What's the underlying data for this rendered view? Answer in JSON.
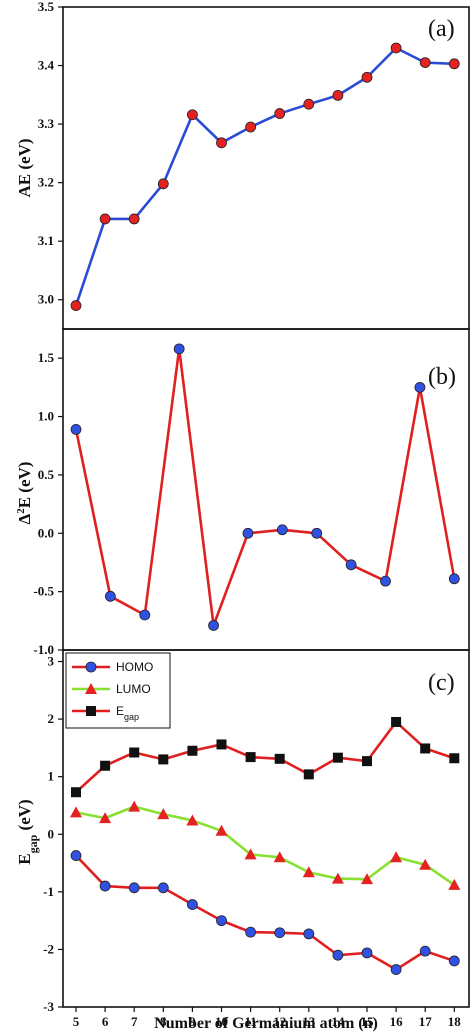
{
  "chart_data": [
    {
      "type": "line",
      "panel_label": "(a)",
      "ylabel": "AE (eV)",
      "ylim": [
        2.95,
        3.5
      ],
      "yticks": [
        "3.0",
        "3.1",
        "3.2",
        "3.3",
        "3.4",
        "3.5"
      ],
      "x": [
        5,
        6,
        7,
        8,
        9,
        10,
        11,
        12,
        13,
        14,
        15,
        16,
        17,
        18
      ],
      "series": [
        {
          "values": [
            2.99,
            3.138,
            3.138,
            3.198,
            3.316,
            3.268,
            3.295,
            3.318,
            3.334,
            3.349,
            3.38,
            3.43,
            3.405,
            3.403
          ],
          "line_color": "#2b4bd6",
          "marker": "circle-red"
        }
      ]
    },
    {
      "type": "line",
      "panel_label": "(b)",
      "ylabel": "Δ2E (eV)",
      "ylim": [
        -1.0,
        1.75
      ],
      "yticks": [
        "-1.0",
        "-0.5",
        "0.0",
        "0.5",
        "1.0",
        "1.5"
      ],
      "x": [
        5,
        6,
        7,
        8,
        9,
        10,
        11,
        12,
        13,
        14,
        15,
        16,
        17,
        18
      ],
      "series": [
        {
          "values": [
            0.89,
            -0.54,
            -0.7,
            1.58,
            -0.79,
            0.0,
            0.03,
            0.0,
            -0.27,
            -0.41,
            1.25,
            -0.39
          ],
          "x": [
            5,
            6,
            7,
            8,
            9,
            10,
            11,
            12,
            13,
            14,
            15,
            16
          ],
          "line_color": "#e02020",
          "marker": "circle-blue"
        }
      ]
    },
    {
      "type": "line",
      "panel_label": "(c)",
      "ylabel": "Egap (eV)",
      "xlabel": "Number of Germanium atom (n)",
      "ylim": [
        -3,
        3.2
      ],
      "yticks": [
        "-3",
        "-2",
        "-1",
        "0",
        "1",
        "2",
        "3"
      ],
      "categories": [
        "5",
        "6",
        "7",
        "8",
        "9",
        "10",
        "11",
        "12",
        "13",
        "14",
        "15",
        "16",
        "17",
        "18"
      ],
      "x": [
        5,
        6,
        7,
        8,
        9,
        10,
        11,
        12,
        13,
        14,
        15,
        16,
        17,
        18
      ],
      "legend": "top-left",
      "series": [
        {
          "name": "HOMO",
          "values": [
            -0.37,
            -0.9,
            -0.93,
            -0.93,
            -1.22,
            -1.5,
            -1.7,
            -1.71,
            -1.73,
            -2.1,
            -2.06,
            -2.35,
            -2.03,
            -2.2
          ],
          "line_color": "#e02020",
          "marker": "circle-blue"
        },
        {
          "name": "LUMO",
          "values": [
            0.38,
            0.28,
            0.48,
            0.35,
            0.24,
            0.06,
            -0.35,
            -0.4,
            -0.66,
            -0.77,
            -0.78,
            -0.4,
            -0.53,
            -0.88
          ],
          "line_color": "#88e030",
          "marker": "triangle-red"
        },
        {
          "name": "E",
          "name_sub": "gap",
          "values": [
            0.73,
            1.19,
            1.42,
            1.3,
            1.45,
            1.56,
            1.34,
            1.31,
            1.04,
            1.33,
            1.27,
            1.95,
            1.49,
            1.32
          ],
          "line_color": "#e02020",
          "marker": "square-black"
        }
      ]
    }
  ]
}
